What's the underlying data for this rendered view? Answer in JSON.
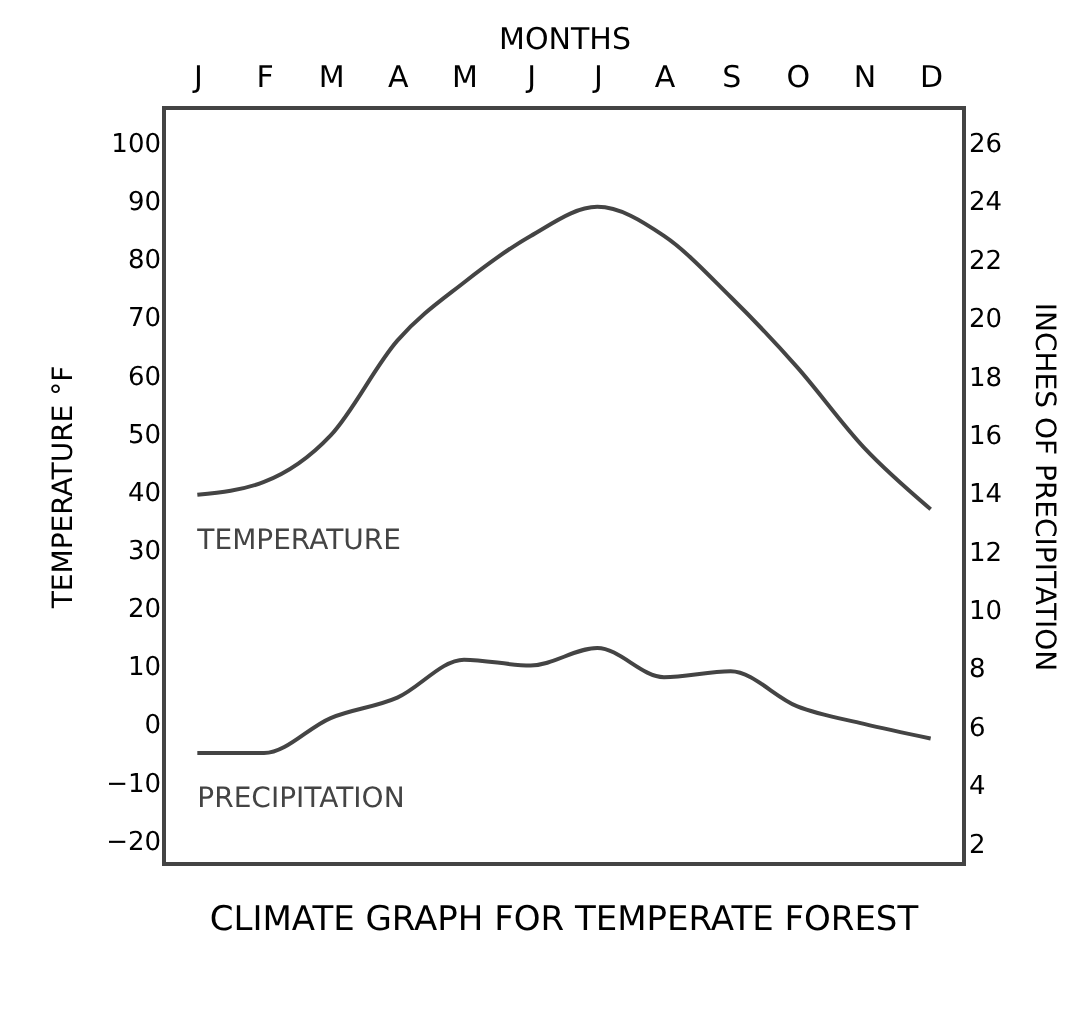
{
  "chart_data": {
    "type": "line",
    "title": "CLIMATE GRAPH FOR TEMPERATE FOREST",
    "xlabel": "MONTHS",
    "ylabel": "TEMPERATURE °F",
    "y2label": "INCHES OF PRECIPITATION",
    "categories": [
      "J",
      "F",
      "M",
      "A",
      "M",
      "J",
      "J",
      "A",
      "S",
      "O",
      "N",
      "D"
    ],
    "series": [
      {
        "name": "TEMPERATURE",
        "color": "#444444",
        "values": [
          39.5,
          41.7,
          49.7,
          66,
          76,
          84,
          89,
          84,
          73.5,
          61.4,
          47.6,
          37
        ]
      },
      {
        "name": "PRECIPITATION",
        "color": "#444444",
        "axis": "y2",
        "values": [
          5.1,
          5.1,
          6.3,
          7.0,
          8.3,
          8.1,
          8.7,
          7.7,
          7.9,
          6.7,
          6.1,
          5.6
        ]
      }
    ],
    "ylim": [
      -24,
      106
    ],
    "yticks": [
      -20,
      -10,
      0,
      10,
      20,
      30,
      40,
      50,
      60,
      70,
      80,
      90,
      100
    ],
    "y2lim": [
      1.3,
      27.2
    ],
    "y2ticks": [
      2,
      4,
      6,
      8,
      10,
      12,
      14,
      16,
      18,
      20,
      22,
      24,
      26
    ],
    "grid": false,
    "marker": "none",
    "line_style": "solid"
  }
}
